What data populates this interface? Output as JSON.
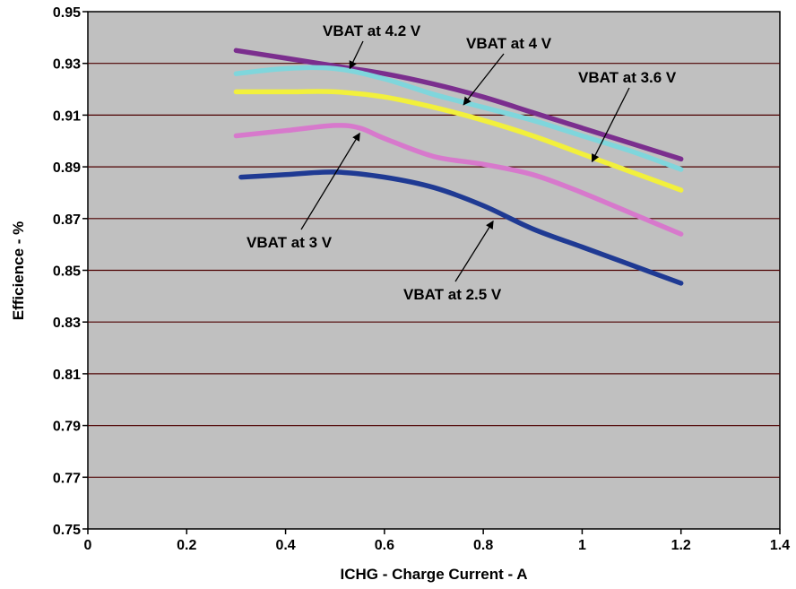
{
  "chart_data": {
    "type": "line",
    "title": "",
    "xlabel": "ICHG - Charge Current - A",
    "ylabel": "Efficience - %",
    "xlim": [
      0,
      1.4
    ],
    "ylim": [
      0.75,
      0.95
    ],
    "x_ticks": [
      "0",
      "0.2",
      "0.4",
      "0.6",
      "0.8",
      "1",
      "1.2",
      "1.4"
    ],
    "y_ticks": [
      "0.95",
      "0.93",
      "0.91",
      "0.89",
      "0.87",
      "0.85",
      "0.83",
      "0.81",
      "0.79",
      "0.77",
      "0.75"
    ],
    "grid": "horizontal",
    "plot_background": "#c0c0c0",
    "gridline_color": "#4d0000",
    "series": [
      {
        "name": "VBAT at 4.2 V",
        "color": "#7b2e8e",
        "x": [
          0.3,
          0.4,
          0.5,
          0.6,
          0.7,
          0.8,
          0.9,
          1.0,
          1.1,
          1.2
        ],
        "y": [
          0.935,
          0.932,
          0.929,
          0.926,
          0.922,
          0.917,
          0.911,
          0.905,
          0.899,
          0.893
        ]
      },
      {
        "name": "VBAT at 4 V",
        "color": "#7fd6dc",
        "x": [
          0.3,
          0.4,
          0.5,
          0.6,
          0.7,
          0.8,
          0.9,
          1.0,
          1.1,
          1.2
        ],
        "y": [
          0.926,
          0.928,
          0.928,
          0.924,
          0.918,
          0.913,
          0.908,
          0.902,
          0.896,
          0.889
        ]
      },
      {
        "name": "VBAT at 3.6 V",
        "color": "#f2f03c",
        "x": [
          0.3,
          0.4,
          0.5,
          0.6,
          0.7,
          0.8,
          0.9,
          1.0,
          1.1,
          1.2
        ],
        "y": [
          0.919,
          0.919,
          0.919,
          0.917,
          0.913,
          0.908,
          0.902,
          0.895,
          0.888,
          0.881
        ]
      },
      {
        "name": "VBAT at 3 V",
        "color": "#d779cc",
        "x": [
          0.3,
          0.4,
          0.5,
          0.55,
          0.6,
          0.7,
          0.8,
          0.9,
          1.0,
          1.1,
          1.2
        ],
        "y": [
          0.902,
          0.904,
          0.906,
          0.905,
          0.901,
          0.894,
          0.891,
          0.887,
          0.88,
          0.872,
          0.864
        ]
      },
      {
        "name": "VBAT at 2.5 V",
        "color": "#1f3a93",
        "x": [
          0.31,
          0.4,
          0.5,
          0.6,
          0.7,
          0.8,
          0.9,
          1.0,
          1.1,
          1.2
        ],
        "y": [
          0.886,
          0.887,
          0.888,
          0.886,
          0.882,
          0.875,
          0.866,
          0.859,
          0.852,
          0.845
        ]
      }
    ],
    "annotations": [
      {
        "text": "VBAT at 4.2 V",
        "series": "VBAT at 4.2 V",
        "point": [
          0.53,
          0.928
        ]
      },
      {
        "text": "VBAT at 4 V",
        "series": "VBAT at 4 V",
        "point": [
          0.76,
          0.914
        ]
      },
      {
        "text": "VBAT at 3.6 V",
        "series": "VBAT at 3.6 V",
        "point": [
          1.02,
          0.892
        ]
      },
      {
        "text": "VBAT at 3 V",
        "series": "VBAT at 3 V",
        "point": [
          0.55,
          0.903
        ]
      },
      {
        "text": "VBAT at 2.5 V",
        "series": "VBAT at 2.5 V",
        "point": [
          0.82,
          0.869
        ]
      }
    ]
  }
}
